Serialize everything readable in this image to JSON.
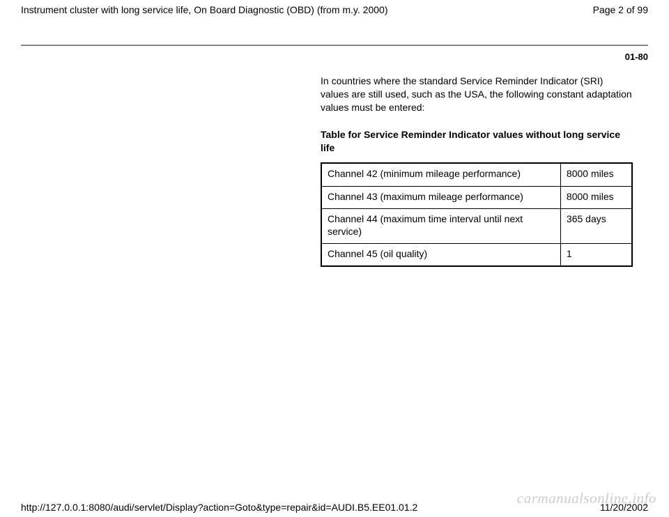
{
  "header": {
    "title": "Instrument cluster with long service life, On Board Diagnostic (OBD) (from m.y. 2000)",
    "page_label": "Page 2 of 99"
  },
  "section_number": "01-80",
  "content": {
    "intro_text": "In countries where the standard Service Reminder Indicator (SRI) values are still used, such as the USA, the following constant adaptation values must be entered:",
    "table_title": "Table for Service Reminder Indicator values without long service life",
    "table_rows": [
      {
        "label": "Channel 42 (minimum mileage performance)",
        "value": "8000 miles"
      },
      {
        "label": "Channel 43 (maximum mileage performance)",
        "value": "8000 miles"
      },
      {
        "label": "Channel 44 (maximum time interval until next service)",
        "value": "365 days"
      },
      {
        "label": "Channel 45 (oil quality)",
        "value": "1"
      }
    ]
  },
  "footer": {
    "url": "http://127.0.0.1:8080/audi/servlet/Display?action=Goto&type=repair&id=AUDI.B5.EE01.01.2",
    "date": "11/20/2002"
  },
  "watermark": "carmanualsonline.info"
}
